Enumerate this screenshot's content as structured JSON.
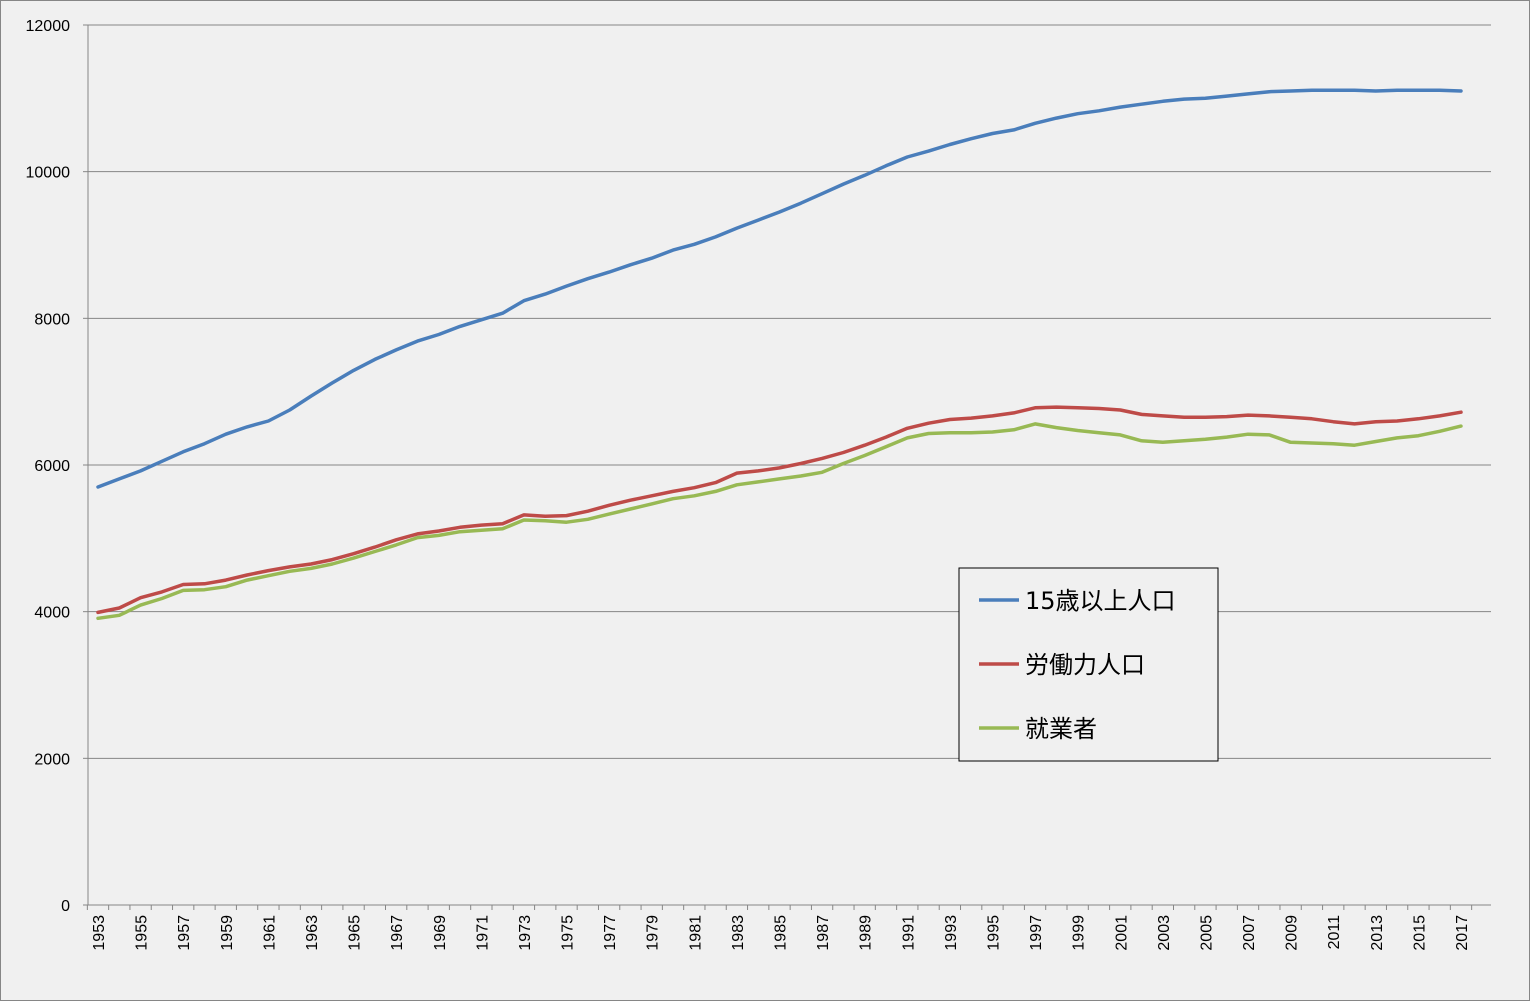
{
  "chart_data": {
    "type": "line",
    "title": "",
    "xlabel": "",
    "ylabel": "",
    "ylim": [
      0,
      12000
    ],
    "yticks": [
      0,
      2000,
      4000,
      6000,
      8000,
      10000,
      12000
    ],
    "ytick_labels": [
      "0",
      "2000",
      "4000",
      "6000",
      "8000",
      "10000",
      "12000"
    ],
    "x": [
      1953,
      1954,
      1955,
      1956,
      1957,
      1958,
      1959,
      1960,
      1961,
      1962,
      1963,
      1964,
      1965,
      1966,
      1967,
      1968,
      1969,
      1970,
      1971,
      1972,
      1973,
      1974,
      1975,
      1976,
      1977,
      1978,
      1979,
      1980,
      1981,
      1982,
      1983,
      1984,
      1985,
      1986,
      1987,
      1988,
      1989,
      1990,
      1991,
      1992,
      1993,
      1994,
      1995,
      1996,
      1997,
      1998,
      1999,
      2000,
      2001,
      2002,
      2003,
      2004,
      2005,
      2006,
      2007,
      2008,
      2009,
      2010,
      2011,
      2012,
      2013,
      2014,
      2015,
      2016,
      2017
    ],
    "xtick_labels": [
      "1953",
      "1955",
      "1957",
      "1959",
      "1961",
      "1963",
      "1965",
      "1967",
      "1969",
      "1971",
      "1973",
      "1975",
      "1977",
      "1979",
      "1981",
      "1983",
      "1985",
      "1987",
      "1989",
      "1991",
      "1993",
      "1995",
      "1997",
      "1999",
      "2001",
      "2003",
      "2005",
      "2007",
      "2009",
      "2011",
      "2013",
      "2015",
      "2017"
    ],
    "grid": "horizontal",
    "legend_position": "center-right",
    "series": [
      {
        "name": "15歳以上人口",
        "color": "#4a7ebb",
        "values": [
          5700,
          5810,
          5920,
          6050,
          6180,
          6290,
          6420,
          6520,
          6600,
          6750,
          6940,
          7120,
          7290,
          7440,
          7570,
          7690,
          7780,
          7890,
          7980,
          8070,
          8240,
          8330,
          8440,
          8540,
          8630,
          8730,
          8820,
          8930,
          9010,
          9110,
          9230,
          9340,
          9450,
          9570,
          9700,
          9830,
          9950,
          10080,
          10200,
          10280,
          10370,
          10450,
          10520,
          10570,
          10660,
          10730,
          10790,
          10830,
          10880,
          10920,
          10960,
          10990,
          11000,
          11030,
          11060,
          11090,
          11100,
          11110,
          11110,
          11110,
          11100,
          11110,
          11110,
          11110,
          11100
        ]
      },
      {
        "name": "労働力人口",
        "color": "#be4b48",
        "values": [
          3990,
          4050,
          4190,
          4270,
          4370,
          4380,
          4430,
          4500,
          4560,
          4610,
          4650,
          4710,
          4790,
          4880,
          4980,
          5060,
          5100,
          5150,
          5180,
          5200,
          5320,
          5300,
          5310,
          5370,
          5450,
          5520,
          5580,
          5640,
          5690,
          5760,
          5890,
          5920,
          5960,
          6020,
          6090,
          6170,
          6270,
          6380,
          6500,
          6570,
          6620,
          6640,
          6670,
          6710,
          6780,
          6790,
          6780,
          6770,
          6750,
          6690,
          6670,
          6650,
          6650,
          6660,
          6680,
          6670,
          6650,
          6630,
          6590,
          6560,
          6590,
          6600,
          6630,
          6670,
          6720
        ]
      },
      {
        "name": "就業者",
        "color": "#98b954",
        "values": [
          3910,
          3950,
          4090,
          4180,
          4290,
          4300,
          4340,
          4430,
          4490,
          4550,
          4590,
          4650,
          4730,
          4820,
          4910,
          5010,
          5040,
          5090,
          5110,
          5130,
          5250,
          5240,
          5220,
          5260,
          5330,
          5400,
          5470,
          5540,
          5580,
          5640,
          5730,
          5770,
          5810,
          5850,
          5900,
          6020,
          6130,
          6250,
          6370,
          6430,
          6440,
          6440,
          6450,
          6480,
          6560,
          6510,
          6470,
          6440,
          6410,
          6330,
          6310,
          6330,
          6350,
          6380,
          6420,
          6410,
          6310,
          6300,
          6290,
          6270,
          6320,
          6370,
          6400,
          6460,
          6530
        ]
      }
    ]
  }
}
